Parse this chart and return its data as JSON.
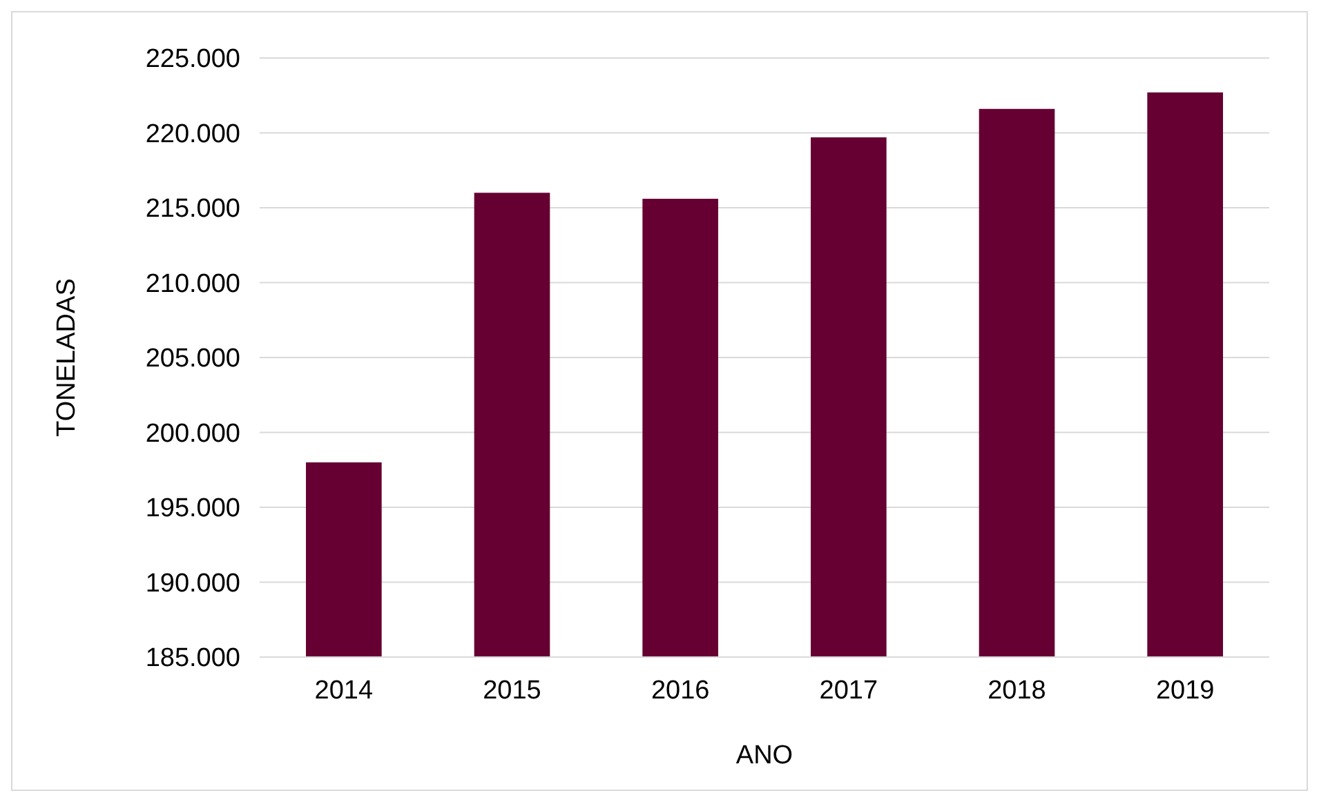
{
  "chart_data": {
    "type": "bar",
    "xlabel": "ANO",
    "ylabel": "TONELADAS",
    "categories": [
      "2014",
      "2015",
      "2016",
      "2017",
      "2018",
      "2019"
    ],
    "values": [
      198000,
      216000,
      215600,
      219700,
      221600,
      222700
    ],
    "color": "#660033",
    "ylim": [
      185000,
      225000
    ],
    "yticks": [
      {
        "value": 185000,
        "label": "185.000"
      },
      {
        "value": 190000,
        "label": "190.000"
      },
      {
        "value": 195000,
        "label": "195.000"
      },
      {
        "value": 200000,
        "label": "200.000"
      },
      {
        "value": 205000,
        "label": "205.000"
      },
      {
        "value": 210000,
        "label": "210.000"
      },
      {
        "value": 215000,
        "label": "215.000"
      },
      {
        "value": 220000,
        "label": "220.000"
      },
      {
        "value": 225000,
        "label": "225.000"
      }
    ],
    "grid": "y"
  }
}
